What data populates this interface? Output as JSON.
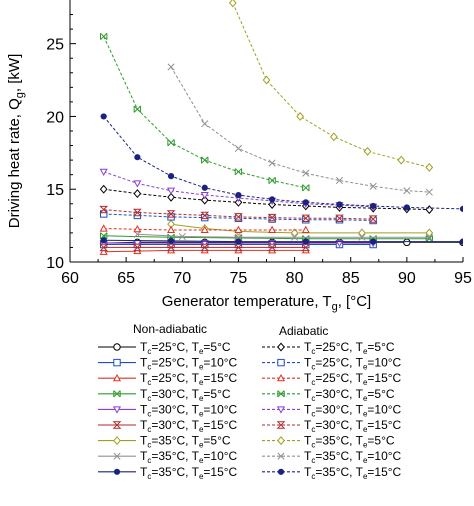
{
  "chart_data": {
    "type": "line",
    "xlabel": "Generator temperature, T",
    "xlabel_sub": "g",
    "xlabel_tail": ", [°C]",
    "ylabel": "Driving heat rate, Q",
    "ylabel_sub": "g",
    "ylabel_tail": ", [kW]",
    "xlim": [
      60,
      95
    ],
    "ylim": [
      10,
      28
    ],
    "xticks": [
      "60",
      "65",
      "70",
      "75",
      "80",
      "85",
      "90",
      "95"
    ],
    "yticks": [
      "10",
      "15",
      "20",
      "25"
    ],
    "grid": false,
    "legend_headers": {
      "non_adiabatic": "Non-adiabatic",
      "adiabatic": "Adiabatic"
    },
    "series": [
      {
        "label": {
          "tc": "=25°C, T",
          "te": "=5°C"
        },
        "group": "non_adiabatic",
        "color": "#000000",
        "dash": "solid",
        "marker": "circle",
        "x": [
          63,
          66,
          69,
          72,
          75,
          78,
          81,
          84,
          87,
          90,
          95
        ],
        "y": [
          11.3,
          11.35,
          11.35,
          11.35,
          11.35,
          11.35,
          11.35,
          11.35,
          11.35,
          11.35,
          11.35
        ]
      },
      {
        "label": {
          "tc": "=25°C, T",
          "te": "=10°C"
        },
        "group": "non_adiabatic",
        "color": "#1f4fbf",
        "dash": "solid",
        "marker": "square",
        "x": [
          63,
          66,
          69,
          72,
          75,
          78,
          81,
          84,
          87
        ],
        "y": [
          11.2,
          11.2,
          11.2,
          11.2,
          11.2,
          11.2,
          11.2,
          11.2,
          11.2
        ]
      },
      {
        "label": {
          "tc": "=25°C, T",
          "te": "=15°C"
        },
        "group": "non_adiabatic",
        "color": "#e03020",
        "dash": "solid",
        "marker": "triangle-up",
        "x": [
          63,
          66,
          69,
          72,
          75,
          78,
          81
        ],
        "y": [
          10.7,
          10.75,
          10.8,
          10.8,
          10.8,
          10.8,
          10.8
        ]
      },
      {
        "label": {
          "tc": "=30°C, T",
          "te": "=5°C"
        },
        "group": "non_adiabatic",
        "color": "#2e9a2e",
        "dash": "solid",
        "marker": "x-bar",
        "x": [
          63,
          69,
          75,
          81,
          87,
          92
        ],
        "y": [
          11.8,
          11.7,
          11.65,
          11.6,
          11.6,
          11.6
        ]
      },
      {
        "label": {
          "tc": "=30°C, T",
          "te": "=10°C"
        },
        "group": "non_adiabatic",
        "color": "#8a3fd1",
        "dash": "solid",
        "marker": "triangle-down",
        "x": [
          63,
          66,
          69,
          72,
          75,
          78,
          81,
          84,
          87
        ],
        "y": [
          11.3,
          11.3,
          11.3,
          11.3,
          11.3,
          11.3,
          11.3,
          11.3,
          11.3
        ]
      },
      {
        "label": {
          "tc": "=30°C, T",
          "te": "=15°C"
        },
        "group": "non_adiabatic",
        "color": "#b02a2a",
        "dash": "solid",
        "marker": "bowtie",
        "x": [
          63,
          66,
          69,
          72,
          75,
          78,
          81
        ],
        "y": [
          11.0,
          11.0,
          11.0,
          11.0,
          11.0,
          11.0,
          11.0
        ]
      },
      {
        "label": {
          "tc": "=35°C, T",
          "te": "=5°C"
        },
        "group": "non_adiabatic",
        "color": "#a0a020",
        "dash": "solid",
        "marker": "diamond",
        "x": [
          69,
          72,
          75,
          80,
          86,
          92
        ],
        "y": [
          12.6,
          12.3,
          12.1,
          12.0,
          12.0,
          12.0
        ]
      },
      {
        "label": {
          "tc": "=35°C, T",
          "te": "=10°C"
        },
        "group": "non_adiabatic",
        "color": "#909090",
        "dash": "solid",
        "marker": "x",
        "x": [
          66,
          70,
          75,
          80,
          86,
          92
        ],
        "y": [
          11.9,
          11.75,
          11.7,
          11.7,
          11.7,
          11.7
        ]
      },
      {
        "label": {
          "tc": "=35°C, T",
          "te": "=15°C"
        },
        "group": "non_adiabatic",
        "color": "#1a237e",
        "dash": "solid",
        "marker": "dot",
        "x": [
          63,
          69,
          75,
          81,
          87,
          95
        ],
        "y": [
          11.5,
          11.45,
          11.4,
          11.4,
          11.4,
          11.4
        ]
      },
      {
        "label": {
          "tc": "=25°C, T",
          "te": "=5°C"
        },
        "group": "adiabatic",
        "color": "#000000",
        "dash": "dashed",
        "marker": "diamond",
        "x": [
          63,
          66,
          69,
          72,
          75,
          78,
          81,
          84,
          87,
          90,
          92
        ],
        "y": [
          15.0,
          14.7,
          14.45,
          14.25,
          14.1,
          13.95,
          13.85,
          13.75,
          13.7,
          13.65,
          13.6
        ]
      },
      {
        "label": {
          "tc": "=25°C, T",
          "te": "=10°C"
        },
        "group": "adiabatic",
        "color": "#1f4fbf",
        "dash": "dashed",
        "marker": "square",
        "x": [
          63,
          66,
          69,
          72,
          75,
          78,
          81,
          84,
          87
        ],
        "y": [
          13.3,
          13.2,
          13.1,
          13.05,
          13.0,
          12.95,
          12.9,
          12.9,
          12.85
        ]
      },
      {
        "label": {
          "tc": "=25°C, T",
          "te": "=15°C"
        },
        "group": "adiabatic",
        "color": "#e03020",
        "dash": "dashed",
        "marker": "triangle-up",
        "x": [
          63,
          66,
          69,
          72,
          75,
          78,
          81
        ],
        "y": [
          12.3,
          12.25,
          12.2,
          12.2,
          12.2,
          12.2,
          12.2
        ]
      },
      {
        "label": {
          "tc": "=30°C, T",
          "te": "=5°C"
        },
        "group": "adiabatic",
        "color": "#2e9a2e",
        "dash": "dashed",
        "marker": "x-bar",
        "x": [
          63,
          66,
          69,
          72,
          75,
          78,
          81
        ],
        "y": [
          25.5,
          20.5,
          18.2,
          17.0,
          16.2,
          15.6,
          15.1
        ]
      },
      {
        "label": {
          "tc": "=30°C, T",
          "te": "=10°C"
        },
        "group": "adiabatic",
        "color": "#8a3fd1",
        "dash": "dashed",
        "marker": "triangle-down",
        "x": [
          63,
          66,
          69,
          72,
          75,
          78,
          81,
          84,
          87
        ],
        "y": [
          16.2,
          15.4,
          14.9,
          14.6,
          14.4,
          14.2,
          14.0,
          13.9,
          13.8
        ]
      },
      {
        "label": {
          "tc": "=30°C, T",
          "te": "=15°C"
        },
        "group": "adiabatic",
        "color": "#b02a2a",
        "dash": "dashed",
        "marker": "bowtie",
        "x": [
          63,
          66,
          69,
          72,
          75,
          78,
          81,
          84,
          87
        ],
        "y": [
          13.6,
          13.4,
          13.3,
          13.2,
          13.1,
          13.05,
          13.0,
          13.0,
          12.95
        ]
      },
      {
        "label": {
          "tc": "=35°C, T",
          "te": "=5°C"
        },
        "group": "adiabatic",
        "color": "#a0a020",
        "dash": "dashed",
        "marker": "diamond",
        "x": [
          74.5,
          77.5,
          80.5,
          83.5,
          86.5,
          89.5,
          92
        ],
        "y": [
          27.8,
          22.5,
          20.0,
          18.6,
          17.6,
          17.0,
          16.5
        ]
      },
      {
        "label": {
          "tc": "=35°C, T",
          "te": "=10°C"
        },
        "group": "adiabatic",
        "color": "#909090",
        "dash": "dashed",
        "marker": "x",
        "x": [
          69,
          72,
          75,
          78,
          81,
          84,
          87,
          90,
          92
        ],
        "y": [
          23.4,
          19.5,
          17.8,
          16.8,
          16.1,
          15.6,
          15.2,
          14.9,
          14.8
        ]
      },
      {
        "label": {
          "tc": "=35°C, T",
          "te": "=15°C"
        },
        "group": "adiabatic",
        "color": "#1a237e",
        "dash": "dashed",
        "marker": "dot",
        "x": [
          63,
          66,
          69,
          72,
          75,
          78,
          81,
          84,
          87,
          90,
          95
        ],
        "y": [
          20.0,
          17.2,
          15.9,
          15.1,
          14.6,
          14.3,
          14.1,
          13.95,
          13.85,
          13.75,
          13.65
        ]
      }
    ]
  }
}
